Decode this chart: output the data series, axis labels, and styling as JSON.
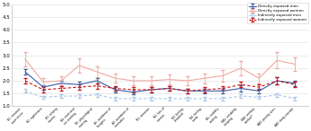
{
  "categories": [
    "B1: intrusion\nexperiences",
    "B2: nightmares",
    "B3: reliving\ntrauma",
    "B4: emotional\nnot reacting",
    "B5: physiological\nreacting",
    "A1: avoidance of\nthoughts",
    "A2: avoidance of\nreminders",
    "N1: amnesia",
    "N2: loss of\ninterest",
    "N3: feeling\ndetached",
    "N4: feeling\nnumb",
    "N5: inability\nsmiling",
    "DA1: irritability\nsleeping",
    "DA2: military\ncombat?",
    "AA1: priority alert",
    "AA2: body reaction"
  ],
  "directly_exposed_men": [
    2.35,
    1.75,
    1.9,
    1.85,
    2.0,
    1.65,
    1.55,
    1.65,
    1.7,
    1.6,
    1.6,
    1.6,
    1.7,
    1.6,
    2.0,
    1.9
  ],
  "directly_exposed_men_err": [
    0.1,
    0.09,
    0.11,
    0.1,
    0.12,
    0.09,
    0.09,
    0.1,
    0.1,
    0.09,
    0.09,
    0.09,
    0.11,
    0.1,
    0.13,
    0.11
  ],
  "directly_exposed_women": [
    2.85,
    1.95,
    2.0,
    2.6,
    2.35,
    2.1,
    2.0,
    2.0,
    2.05,
    2.0,
    2.1,
    2.2,
    2.5,
    2.1,
    2.8,
    2.65
  ],
  "directly_exposed_women_err": [
    0.28,
    0.15,
    0.18,
    0.28,
    0.22,
    0.18,
    0.17,
    0.18,
    0.19,
    0.18,
    0.19,
    0.22,
    0.28,
    0.19,
    0.32,
    0.28
  ],
  "indirectly_exposed_men": [
    1.6,
    1.35,
    1.4,
    1.4,
    1.45,
    1.3,
    1.3,
    1.3,
    1.3,
    1.3,
    1.3,
    1.3,
    1.4,
    1.35,
    1.45,
    1.3
  ],
  "indirectly_exposed_men_err": [
    0.07,
    0.06,
    0.07,
    0.07,
    0.07,
    0.06,
    0.06,
    0.06,
    0.06,
    0.06,
    0.06,
    0.06,
    0.07,
    0.06,
    0.07,
    0.06
  ],
  "indirectly_exposed_women": [
    2.0,
    1.65,
    1.7,
    1.75,
    1.8,
    1.7,
    1.65,
    1.65,
    1.7,
    1.6,
    1.65,
    1.7,
    1.85,
    1.75,
    2.0,
    1.85
  ],
  "indirectly_exposed_women_err": [
    0.12,
    0.09,
    0.1,
    0.1,
    0.11,
    0.1,
    0.09,
    0.09,
    0.1,
    0.09,
    0.09,
    0.1,
    0.11,
    0.1,
    0.13,
    0.11
  ],
  "color_directly_men": "#3A5BA0",
  "color_directly_women": "#F0A8A0",
  "color_indirectly_men": "#A8C8E8",
  "color_indirectly_women": "#CC1111",
  "ylim": [
    1,
    5
  ],
  "yticks": [
    1,
    1.5,
    2,
    2.5,
    3,
    3.5,
    4,
    4.5,
    5
  ],
  "legend_labels": [
    "Directly exposed men",
    "Directly exposed women",
    "Indirectly exposed men",
    "Indirectly exposed women"
  ]
}
